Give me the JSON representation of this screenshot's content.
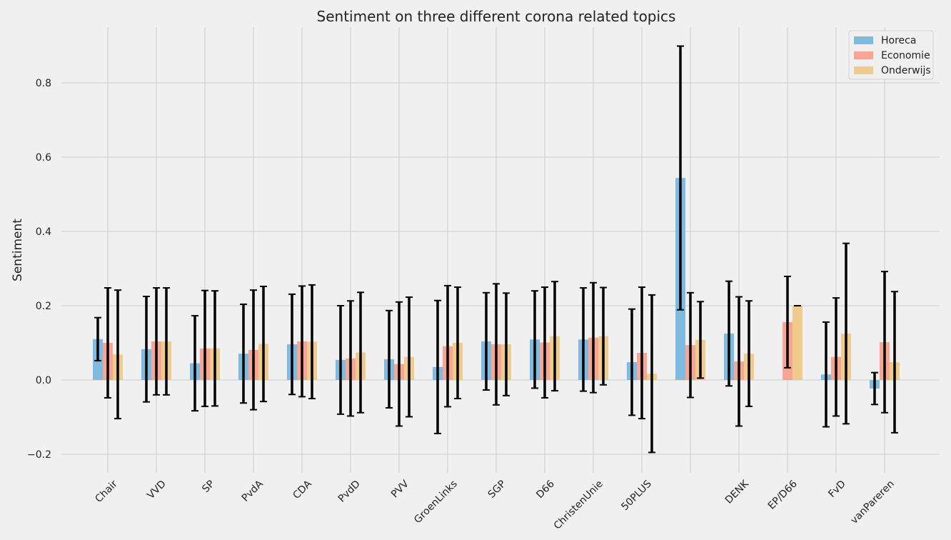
{
  "chart_data": {
    "type": "bar",
    "title": "Sentiment on three different corona related topics",
    "xlabel": "",
    "ylabel": "Sentiment",
    "ylim": [
      -0.25,
      0.95
    ],
    "yticks": [
      -0.2,
      0.0,
      0.2,
      0.4,
      0.6,
      0.8
    ],
    "ytick_labels": [
      "−0.2",
      "0.0",
      "0.2",
      "0.4",
      "0.6",
      "0.8"
    ],
    "grid": true,
    "legend_position": "top-right",
    "categories": [
      "Chair",
      "VVD",
      "SP",
      "PvdA",
      "CDA",
      "PvdD",
      "PVV",
      "GroenLinks",
      "SGP",
      "D66",
      "ChristenUnie",
      "50PLUS",
      "",
      "DENK",
      "EP/D66",
      "FvD",
      "vanPareren"
    ],
    "series": [
      {
        "name": "Horeca",
        "color": "#7dbbe1",
        "values": [
          0.11,
          0.083,
          0.045,
          0.071,
          0.096,
          0.054,
          0.056,
          0.035,
          0.104,
          0.109,
          0.109,
          0.048,
          0.544,
          0.125,
          null,
          0.015,
          -0.023
        ],
        "errors": [
          0.058,
          0.142,
          0.128,
          0.133,
          0.135,
          0.146,
          0.131,
          0.179,
          0.131,
          0.131,
          0.139,
          0.143,
          0.355,
          0.141,
          null,
          0.141,
          0.043
        ]
      },
      {
        "name": "Economie",
        "color": "#f8a594",
        "values": [
          0.1,
          0.104,
          0.085,
          0.081,
          0.104,
          0.058,
          0.043,
          0.091,
          0.096,
          0.101,
          0.114,
          0.073,
          0.094,
          0.05,
          0.156,
          0.062,
          0.102
        ],
        "errors": [
          0.148,
          0.144,
          0.156,
          0.161,
          0.149,
          0.155,
          0.167,
          0.163,
          0.163,
          0.149,
          0.148,
          0.177,
          0.141,
          0.174,
          0.123,
          0.159,
          0.19
        ]
      },
      {
        "name": "Onderwijs",
        "color": "#efcb8c",
        "values": [
          0.069,
          0.104,
          0.085,
          0.097,
          0.103,
          0.074,
          0.062,
          0.1,
          0.096,
          0.118,
          0.118,
          0.017,
          0.108,
          0.071,
          0.2,
          0.125,
          0.048
        ],
        "errors": [
          0.173,
          0.144,
          0.155,
          0.155,
          0.153,
          0.162,
          0.161,
          0.15,
          0.138,
          0.147,
          0.131,
          0.212,
          0.103,
          0.142,
          0.0,
          0.243,
          0.19
        ]
      }
    ]
  }
}
